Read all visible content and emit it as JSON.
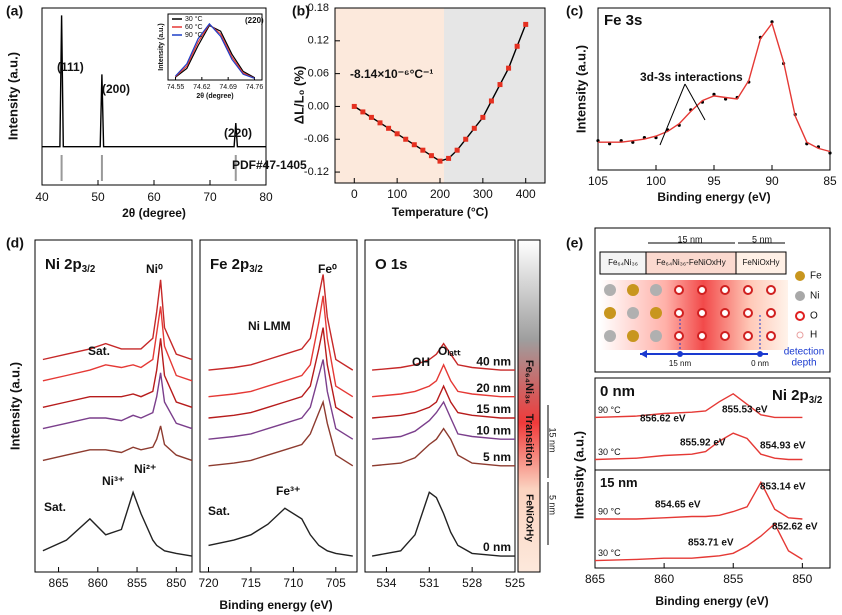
{
  "panel_labels": [
    "(a)",
    "(b)",
    "(c)",
    "(d)",
    "(e)"
  ],
  "chart_data": [
    {
      "type": "line",
      "x_label": "2θ (degree)",
      "y_label": "Intensity (a.u.)",
      "xlim": [
        40,
        80
      ],
      "xticks": [
        40,
        50,
        60,
        70,
        80
      ],
      "ylim": [
        -20,
        100
      ],
      "x": [
        40,
        43.2,
        43.5,
        43.8,
        50.4,
        50.7,
        51,
        74.3,
        74.6,
        74.9,
        80
      ],
      "series": [
        {
          "color": "#000000",
          "values": [
            6,
            6,
            95,
            6,
            6,
            55,
            6,
            6,
            22,
            6,
            6
          ]
        }
      ],
      "reference_lines": [
        43.5,
        50.7,
        74.6
      ],
      "annotations": [
        "(111)",
        "(200)",
        "(220)",
        "PDF#47-1405"
      ]
    },
    {
      "type": "line",
      "title": "(220)",
      "x_label": "2θ (degree)",
      "y_label": "Intensity (a.u.)",
      "xlim": [
        74.53,
        74.78
      ],
      "xticks": [
        74.55,
        74.62,
        74.69,
        74.76
      ],
      "ylim": [
        0,
        115
      ],
      "x": [
        74.55,
        74.58,
        74.61,
        74.64,
        74.67,
        74.7,
        74.73,
        74.76
      ],
      "legend": "upper left",
      "series": [
        {
          "name": "30 °C",
          "color": "#000000",
          "values": [
            5,
            20,
            60,
            95,
            85,
            45,
            15,
            4
          ]
        },
        {
          "name": "60 °C",
          "color": "#e53935",
          "values": [
            6,
            24,
            66,
            97,
            80,
            40,
            12,
            3
          ]
        },
        {
          "name": "90 °C",
          "color": "#1e40c8",
          "values": [
            7,
            28,
            72,
            98,
            76,
            36,
            10,
            3
          ]
        }
      ]
    },
    {
      "type": "line",
      "x_label": "Temperature (°C)",
      "y_label": "ΔL/L₀ (%)",
      "xlim": [
        -45,
        445
      ],
      "xticks": [
        0,
        100,
        200,
        300,
        400
      ],
      "ylim": [
        -0.14,
        0.18
      ],
      "yticks": [
        -0.12,
        -0.06,
        {
          "value": 0,
          "label": "0.00"
        },
        0.06,
        0.12,
        0.18
      ],
      "x": [
        0,
        20,
        40,
        60,
        80,
        100,
        120,
        140,
        160,
        180,
        200,
        220,
        240,
        260,
        280,
        300,
        320,
        340,
        360,
        380,
        400
      ],
      "series": [
        {
          "color": "#e53020",
          "line_color": "#000000",
          "marker": "square",
          "values": [
            0,
            -0.01,
            -0.02,
            -0.03,
            -0.04,
            -0.05,
            -0.06,
            -0.07,
            -0.08,
            -0.09,
            -0.1,
            -0.095,
            -0.08,
            -0.06,
            -0.04,
            -0.02,
            0.01,
            0.04,
            0.07,
            0.11,
            0.15
          ]
        }
      ],
      "annotations": [
        "-8.14×10⁻⁶°C⁻¹"
      ]
    },
    {
      "type": "line",
      "title": "Fe 3s",
      "x_label": "Binding energy (eV)",
      "y_label": "Intensity (a.u.)",
      "xlim": [
        105,
        85
      ],
      "xticks": [
        105,
        100,
        95,
        90,
        85
      ],
      "ylim": [
        0,
        105
      ],
      "x": [
        105,
        104,
        103,
        102,
        101,
        100,
        99,
        98,
        97,
        96,
        95,
        94,
        93,
        92,
        91,
        90,
        89,
        88,
        87,
        86,
        85
      ],
      "series": [
        {
          "color": "#000000",
          "marker": "dot",
          "values": [
            19,
            17,
            19,
            18,
            21,
            21,
            26,
            29,
            39,
            44,
            49,
            46,
            47,
            57,
            86,
            96,
            69,
            36,
            17,
            15,
            11
          ]
        },
        {
          "color": "#e53935",
          "values": [
            18,
            18,
            18,
            19,
            20,
            22,
            25,
            30,
            38,
            45,
            48,
            47,
            46,
            58,
            85,
            95,
            70,
            35,
            18,
            14,
            12
          ]
        }
      ],
      "annotations": [
        "3d-3s interactions"
      ]
    },
    {
      "type": "line",
      "title": "Ni 2p",
      "title_subscript": "3/2",
      "y_label": "Intensity (a.u.)",
      "xlim": [
        868,
        848
      ],
      "xticks": [
        865,
        860,
        855,
        850
      ],
      "ylim": [
        0,
        125
      ],
      "x": [
        867,
        864,
        861,
        859,
        857,
        855.5,
        854.5,
        853,
        852.5,
        852,
        851.5,
        850,
        848
      ],
      "series": [
        {
          "color": "#c62828",
          "values": [
            80,
            82,
            84,
            86,
            84,
            84,
            84,
            88,
            98,
            110,
            92,
            82,
            80
          ]
        },
        {
          "color": "#e53935",
          "values": [
            72,
            74,
            76,
            78,
            77,
            78,
            77,
            80,
            90,
            100,
            85,
            74,
            72
          ]
        },
        {
          "color": "#b71c1c",
          "values": [
            62,
            64,
            66,
            66,
            66,
            67,
            66,
            68,
            76,
            88,
            74,
            64,
            62
          ]
        },
        {
          "color": "#7b3f8c",
          "values": [
            54,
            56,
            58,
            58,
            57,
            59,
            58,
            60,
            66,
            75,
            64,
            56,
            54
          ]
        },
        {
          "color": "#8d3b2f",
          "values": [
            42,
            44,
            46,
            46,
            45,
            47,
            46,
            47,
            50,
            55,
            48,
            44,
            42
          ]
        },
        {
          "color": "#222222",
          "values": [
            8,
            12,
            20,
            14,
            16,
            30,
            22,
            12,
            10,
            9,
            8,
            7,
            6
          ]
        }
      ],
      "annotations": [
        "Sat.",
        "Ni⁰",
        "Ni³⁺",
        "Ni²⁺",
        "Sat."
      ]
    },
    {
      "type": "line",
      "title": "Fe 2p",
      "title_subscript": "3/2",
      "x_label": "Binding energy (eV)",
      "xlim": [
        721,
        702.5
      ],
      "xticks": [
        720,
        715,
        710,
        705
      ],
      "ylim": [
        0,
        125
      ],
      "x": [
        720,
        717,
        715,
        713,
        711,
        709,
        708,
        707,
        706.5,
        706,
        705,
        703
      ],
      "series": [
        {
          "color": "#c62828",
          "values": [
            76,
            77,
            78,
            80,
            82,
            84,
            88,
            104,
            112,
            96,
            80,
            76
          ]
        },
        {
          "color": "#e53935",
          "values": [
            66,
            67,
            68,
            70,
            72,
            74,
            78,
            94,
            104,
            88,
            70,
            66
          ]
        },
        {
          "color": "#b71c1c",
          "values": [
            58,
            59,
            60,
            62,
            64,
            66,
            70,
            84,
            92,
            78,
            62,
            58
          ]
        },
        {
          "color": "#7b3f8c",
          "values": [
            50,
            51,
            52,
            54,
            56,
            58,
            62,
            74,
            80,
            68,
            54,
            50
          ]
        },
        {
          "color": "#8d3b2f",
          "values": [
            40,
            41,
            42,
            44,
            46,
            48,
            52,
            60,
            64,
            56,
            44,
            40
          ]
        },
        {
          "color": "#222222",
          "values": [
            10,
            12,
            14,
            18,
            24,
            20,
            14,
            10,
            9,
            8,
            7,
            6
          ]
        }
      ],
      "annotations": [
        "Fe⁰",
        "Ni LMM",
        "Sat.",
        "Fe³⁺"
      ]
    },
    {
      "type": "line",
      "title": "O 1s",
      "series_labels": "right",
      "xlim": [
        535.5,
        525
      ],
      "xticks": [
        534,
        531,
        528,
        525
      ],
      "ylim": [
        0,
        125
      ],
      "x": [
        535,
        533,
        532,
        531,
        530.5,
        530,
        529.5,
        529,
        528,
        526,
        525
      ],
      "series": [
        {
          "name": "40 nm",
          "color": "#c62828",
          "values": [
            76,
            77,
            78,
            80,
            82,
            86,
            82,
            78,
            77,
            76,
            76
          ]
        },
        {
          "name": "20 nm",
          "color": "#e53935",
          "values": [
            66,
            67,
            68,
            70,
            72,
            78,
            72,
            68,
            67,
            66,
            66
          ]
        },
        {
          "name": "15 nm",
          "color": "#b71c1c",
          "values": [
            58,
            59,
            60,
            62,
            64,
            70,
            64,
            60,
            59,
            58,
            58
          ]
        },
        {
          "name": "10 nm",
          "color": "#7b3f8c",
          "values": [
            50,
            51,
            53,
            57,
            60,
            64,
            58,
            52,
            51,
            50,
            50
          ]
        },
        {
          "name": "5 nm",
          "color": "#8d3b2f",
          "values": [
            40,
            41,
            43,
            48,
            50,
            54,
            50,
            44,
            41,
            40,
            40
          ]
        },
        {
          "name": "0 nm",
          "color": "#222222",
          "values": [
            6,
            8,
            14,
            30,
            28,
            22,
            15,
            10,
            7,
            6,
            6
          ]
        }
      ],
      "annotations": [
        "OH",
        "Oₗₐₜₜ"
      ],
      "depth_bar": [
        "Fe₆₄Ni₃₆",
        "Transition",
        "FeNiOxHy",
        "15 nm",
        "5 nm"
      ]
    },
    {
      "type": "line",
      "title": "0 nm",
      "subtitle": "Ni 2p",
      "subtitle_subscript": "3/2",
      "series_labels": "left",
      "y_label": "Intensity (a.u.)",
      "xlim": [
        865,
        848
      ],
      "ylim": [
        0,
        70
      ],
      "x": [
        865,
        862,
        860,
        858,
        857,
        856,
        855,
        854,
        853,
        852,
        851,
        850
      ],
      "series": [
        {
          "name": "90 °C",
          "color": "#e53935",
          "values": [
            40,
            41,
            43,
            44,
            45,
            52,
            58,
            50,
            42,
            40,
            40,
            40
          ]
        },
        {
          "name": "30 °C",
          "color": "#e53935",
          "values": [
            8,
            9,
            11,
            12,
            14,
            22,
            28,
            24,
            12,
            9,
            8,
            8
          ]
        }
      ],
      "annotations": [
        "856.62 eV",
        "855.53 eV",
        "855.92 eV",
        "854.93 eV"
      ]
    },
    {
      "type": "line",
      "title": "15 nm",
      "series_labels": "left",
      "x_label": "Binding energy (eV)",
      "xlim": [
        865,
        848
      ],
      "xticks": [
        865,
        860,
        855,
        850
      ],
      "ylim": [
        0,
        80
      ],
      "x": [
        865,
        862,
        860,
        858,
        857,
        856,
        855,
        854,
        853,
        852,
        851,
        850
      ],
      "series": [
        {
          "name": "90 °C",
          "color": "#e53935",
          "values": [
            40,
            40,
            41,
            42,
            42,
            43,
            46,
            50,
            70,
            48,
            41,
            40
          ]
        },
        {
          "name": "30 °C",
          "color": "#e53935",
          "values": [
            6,
            7,
            8,
            8,
            9,
            10,
            12,
            18,
            26,
            36,
            14,
            7
          ]
        }
      ],
      "annotations": [
        "853.14 eV",
        "854.65 eV",
        "852.62 eV",
        "853.71 eV"
      ]
    }
  ],
  "schematic": {
    "regions": [
      "Fe₆₄Ni₃₆",
      "Fe₆₄Ni₃₆-FeNiOxHy",
      "FeNiOxHy"
    ],
    "widths": [
      "15 nm",
      "5 nm"
    ],
    "legend": [
      "Fe",
      "Ni",
      "O",
      "H"
    ],
    "depth_label": [
      "detection",
      "depth"
    ],
    "depth_ticks": [
      "15 nm",
      "0 nm"
    ]
  }
}
